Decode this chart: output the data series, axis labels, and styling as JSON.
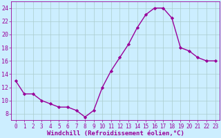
{
  "x": [
    0,
    1,
    2,
    3,
    4,
    5,
    6,
    7,
    8,
    9,
    10,
    11,
    12,
    13,
    14,
    15,
    16,
    17,
    18,
    19,
    20,
    21,
    22,
    23
  ],
  "y": [
    13,
    11,
    11,
    10,
    9.5,
    9,
    9,
    8.5,
    7.5,
    8.5,
    12,
    14.5,
    16.5,
    18.5,
    21,
    23,
    24,
    24,
    22.5,
    18,
    17.5,
    16.5,
    16,
    16
  ],
  "line_color": "#990099",
  "marker": "D",
  "marker_size": 2.2,
  "line_width": 1.0,
  "xlabel": "Windchill (Refroidissement éolien,°C)",
  "xlabel_fontsize": 6.5,
  "bg_color": "#cceeff",
  "grid_color": "#aacccc",
  "tick_color": "#990099",
  "label_color": "#990099",
  "yticks": [
    8,
    10,
    12,
    14,
    16,
    18,
    20,
    22,
    24
  ],
  "ylim": [
    7,
    25
  ],
  "xlim": [
    -0.5,
    23.5
  ]
}
